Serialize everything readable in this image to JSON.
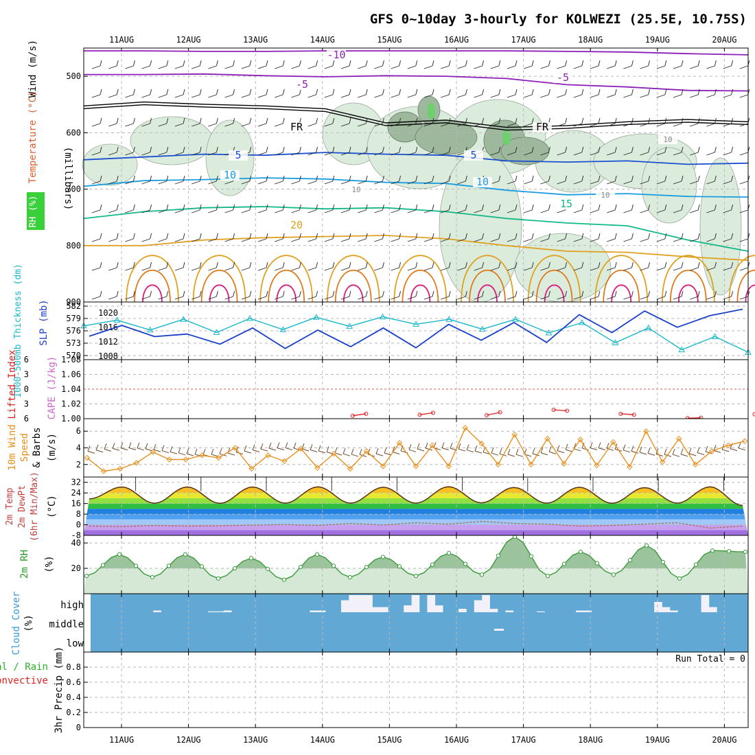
{
  "title": "GFS 0~10day 3-hourly for KOLWEZI (25.5E, 10.75S)",
  "colors": {
    "grid": "#b8b8b8",
    "rh_fill": "#dcecdc",
    "rh_fill_dark": "#9db89d",
    "rh_core": "#6fcf6f",
    "freezing": "#000000",
    "temp_neg": "#8b1fb8",
    "temp_5": "#1a4fd1",
    "temp_10": "#1a9de0",
    "temp_15": "#12b88a",
    "temp_20": "#e0a020",
    "temp_25": "#e07818",
    "temp_30": "#d81c7c",
    "thickness": "#19b8c8",
    "slp": "#1a3fc8",
    "lifted_index": "#e02020",
    "cape": "#cc66cc",
    "wind_speed": "#e8901c",
    "barb": "#6b4a2a",
    "rh2m": "#3a9a3a",
    "rh2m_fill": "#9cc49c",
    "cloud_blue": "#62a8d4",
    "cloud_white": "#f2f0f8",
    "dewpoint": "#a07050"
  },
  "chart_data": [
    {
      "panel": "upper-air",
      "type": "heatmap",
      "x_dates": [
        "11AUG",
        "12AUG",
        "13AUG",
        "14AUG",
        "15AUG",
        "16AUG",
        "17AUG",
        "18AUG",
        "19AUG",
        "20AUG"
      ],
      "ylabel": "(millibars)",
      "ylabel_left": [
        "Wind (m/s)",
        "Temperature (°C)",
        "RH (%)"
      ],
      "y_ticks": [
        500,
        600,
        700,
        800,
        900
      ],
      "ylim": [
        450,
        900
      ],
      "contour_labels": [
        "-10",
        "-5",
        "-5",
        "FR",
        "FR",
        "5",
        "5",
        "10",
        "10",
        "15",
        "20",
        "10",
        "10",
        "10"
      ],
      "isotherms": [
        {
          "name": "-10",
          "values": [
            455,
            455,
            456,
            456,
            455,
            455,
            455,
            455,
            456,
            457,
            460,
            462
          ]
        },
        {
          "name": "-5",
          "values": [
            497,
            497,
            496,
            499,
            501,
            499,
            500,
            504,
            515,
            519,
            525,
            526
          ]
        },
        {
          "name": "FR",
          "values": [
            555,
            548,
            552,
            555,
            560,
            585,
            580,
            593,
            590,
            583,
            579,
            583
          ]
        },
        {
          "name": "5",
          "values": [
            648,
            643,
            638,
            640,
            635,
            638,
            640,
            650,
            652,
            650,
            656,
            654
          ]
        },
        {
          "name": "10",
          "values": [
            695,
            685,
            683,
            680,
            682,
            688,
            690,
            702,
            710,
            708,
            713,
            714
          ]
        },
        {
          "name": "15",
          "values": [
            752,
            740,
            733,
            731,
            735,
            733,
            740,
            752,
            760,
            765,
            790,
            810
          ]
        },
        {
          "name": "20",
          "values": [
            800,
            800,
            790,
            786,
            784,
            782,
            788,
            800,
            810,
            812,
            820,
            826
          ]
        }
      ]
    },
    {
      "panel": "thickness-slp",
      "type": "line",
      "ylabel_left": "1000-500mb Thickness (dm)",
      "ylabel_right": "SLP (mb)",
      "y_ticks_left": [
        570,
        573,
        576,
        579,
        582
      ],
      "y_ticks_right": [
        1008,
        1012,
        1016,
        1020
      ],
      "x_days": [
        0,
        0.5,
        1,
        1.5,
        2,
        2.5,
        3,
        3.5,
        4,
        4.5,
        5,
        5.5,
        6,
        6.5,
        7,
        7.5,
        8,
        8.5,
        9,
        9.5,
        10
      ],
      "series": [
        {
          "name": "1000-500mb Thickness (dm)",
          "values": [
            577.2,
            578.6,
            576.2,
            578.8,
            575.6,
            579.0,
            576.3,
            579.3,
            577.1,
            579.4,
            577.6,
            578.8,
            576.4,
            578.8,
            575.5,
            578.0,
            573.1,
            576.7,
            571.4,
            574.6,
            570.8
          ]
        },
        {
          "name": "SLP (mb)",
          "values": [
            1013.5,
            1016.5,
            1013.4,
            1014.1,
            1011.3,
            1015.8,
            1010.1,
            1015.2,
            1010.6,
            1015.8,
            1010.3,
            1016.8,
            1012.4,
            1017.3,
            1011.8,
            1019.5,
            1014.5,
            1020.5,
            1016.0,
            1019.2,
            1021.0
          ]
        }
      ]
    },
    {
      "panel": "lifted-index-cape",
      "type": "line",
      "ylabel_left": "Lifted Index",
      "ylabel_right": "CAPE (J/kg)",
      "y_ticks_left": [
        -6,
        -3,
        0,
        3,
        6
      ],
      "y_ticks_right": [
        1.0,
        1.02,
        1.04,
        1.06,
        1.08
      ],
      "x_days": [
        3.4,
        3.6,
        4.4,
        4.6,
        5.4,
        5.6,
        6.4,
        6.6,
        7.4,
        7.6,
        8.4,
        8.6,
        9.4,
        9.6
      ],
      "series": [
        {
          "name": "Lifted Index",
          "values": [
            5.4,
            5.0,
            5.2,
            4.8,
            5.3,
            4.7,
            4.2,
            4.4,
            5.0,
            5.2,
            5.9,
            5.8,
            5.1,
            5.4
          ]
        }
      ]
    },
    {
      "panel": "wind10m",
      "type": "line",
      "ylabel_left": "10m Wind Speed & Barbs",
      "ylabel_right": "(m/s)",
      "y_ticks": [
        2,
        4,
        6
      ],
      "ylim": [
        0.5,
        7.5
      ],
      "series": [
        {
          "name": "10m Wind Speed",
          "values": [
            2.8,
            1.2,
            1.5,
            2.2,
            3.5,
            2.6,
            2.6,
            3.1,
            2.8,
            4.0,
            1.5,
            3.1,
            2.4,
            3.9,
            1.6,
            3.3,
            1.5,
            3.6,
            1.8,
            4.6,
            1.8,
            4.3,
            1.8,
            6.4,
            4.5,
            2.0,
            5.6,
            2.0,
            5.1,
            2.1,
            5.0,
            1.9,
            4.7,
            1.7,
            6.0,
            2.3,
            5.1,
            2.0,
            3.6,
            4.3,
            4.8
          ]
        }
      ]
    },
    {
      "panel": "temp2m",
      "type": "area",
      "ylabel_left": "2m Temp 2m DewPt (6hr Min/Max)",
      "ylabel_right": "(°C)",
      "y_ticks": [
        -8,
        0,
        8,
        16,
        24,
        32
      ],
      "ylim": [
        -8,
        36
      ],
      "series": [
        {
          "name": "2m Temp",
          "values": [
            19.5,
            28.5,
            16.2,
            28.5,
            16.1,
            28.5,
            16.3,
            28.6,
            16.3,
            28.3,
            16.3,
            28.7,
            16.5,
            28.1,
            16.3,
            28.3,
            16.2,
            28.0,
            16.3,
            28.6,
            14.5
          ]
        },
        {
          "name": "2m DewPt",
          "values": [
            -1,
            -1.5,
            -0.5,
            -1,
            -0.8,
            -0.3,
            0.2,
            -0.5,
            1.0,
            -0.2,
            1.5,
            0.5,
            2.5,
            1.0,
            0.5,
            -1.0,
            -0.5,
            0.5,
            1.5,
            -2.5,
            -1.0
          ]
        }
      ]
    },
    {
      "panel": "rh2m",
      "type": "area",
      "ylabel_left": "2m RH",
      "ylabel_right": "(%)",
      "y_ticks": [
        20,
        40
      ],
      "ylim": [
        0,
        46
      ],
      "series": [
        {
          "name": "2m RH",
          "values": [
            14,
            31,
            13,
            31,
            12,
            28,
            11,
            31,
            13,
            29,
            14,
            32,
            15,
            45,
            14,
            33,
            15,
            38,
            12,
            34,
            33
          ]
        }
      ]
    },
    {
      "panel": "cloud-cover",
      "type": "heatmap",
      "ylabel": "Cloud Cover (%)",
      "y_levels": [
        "high",
        "middle",
        "low"
      ],
      "high_cover_pct": [
        0,
        0,
        0,
        0,
        0,
        0,
        0,
        0,
        10,
        0,
        0,
        0,
        0,
        0,
        0,
        5,
        5,
        10,
        0,
        0,
        0,
        0,
        0,
        0,
        0,
        0,
        0,
        0,
        10,
        10,
        0,
        0,
        70,
        100,
        100,
        100,
        30,
        30,
        0,
        0,
        40,
        100,
        0,
        100,
        40,
        0,
        0,
        20,
        0,
        70,
        100,
        20,
        0,
        10,
        0,
        0,
        0,
        5,
        0,
        0,
        0,
        0,
        10,
        10,
        0,
        0,
        0,
        0,
        0,
        0,
        0,
        0,
        60,
        30,
        10,
        0,
        0,
        0,
        100,
        30,
        0,
        0,
        0,
        0
      ]
    },
    {
      "panel": "precip",
      "type": "bar",
      "ylabel": "3hr Precip (mm)",
      "legend": [
        "Total / Rain",
        "Convective"
      ],
      "annotation": "Run Total = 0",
      "y_ticks": [
        0,
        0.2,
        0.4,
        0.6,
        0.8
      ],
      "ylim": [
        0,
        1.0
      ],
      "values": []
    }
  ],
  "labels": {
    "wind_axis": "Wind (m/s)",
    "temp_axis": "Temperature (°C)",
    "rh_axis": "RH (%)",
    "mb_axis": "(millibars)",
    "thick_axis": "1000-500mb Thickness (dm)",
    "slp_axis": "SLP (mb)",
    "li_axis": "Lifted Index",
    "cape_axis": "CAPE (J/kg)",
    "wind10_axis_a": "10m Wind",
    "wind10_axis_b": "Speed",
    "wind10_axis_c": "& Barbs",
    "wind10_units": "(m/s)",
    "t2_axis_a": "2m Temp",
    "t2_axis_b": "2m DewPt",
    "t2_axis_c": "(6hr Min/Max)",
    "t2_units": "(°C)",
    "rh2_axis": "2m RH",
    "rh2_units": "(%)",
    "cloud_axis_a": "Cloud Cover",
    "cloud_axis_b": "(%)",
    "precip_axis_a": "tal / Rain",
    "precip_axis_b": "Convective",
    "precip_axis_c": "3hr Precip (mm)",
    "run_total": "Run Total = 0"
  }
}
